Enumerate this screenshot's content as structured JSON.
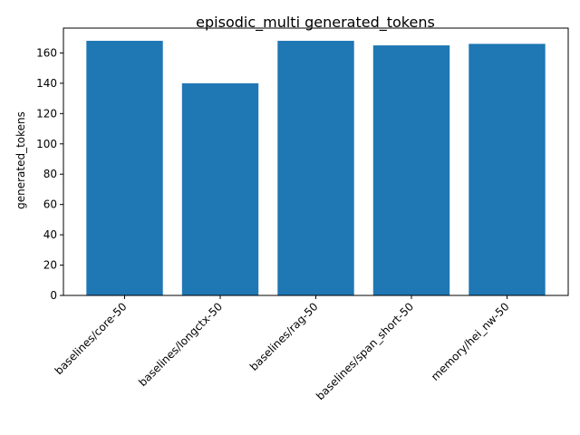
{
  "chart_data": {
    "type": "bar",
    "title": "episodic_multi generated_tokens",
    "xlabel": "",
    "ylabel": "generated_tokens",
    "categories": [
      "baselines/core-50",
      "baselines/longctx-50",
      "baselines/rag-50",
      "baselines/span_short-50",
      "memory/hei_nw-50"
    ],
    "values": [
      168,
      140,
      168,
      165,
      166
    ],
    "ylim": [
      0,
      176.4
    ],
    "yticks": [
      0,
      20,
      40,
      60,
      80,
      100,
      120,
      140,
      160
    ],
    "grid": false,
    "legend": "none",
    "bar_color": "#1f77b4"
  }
}
